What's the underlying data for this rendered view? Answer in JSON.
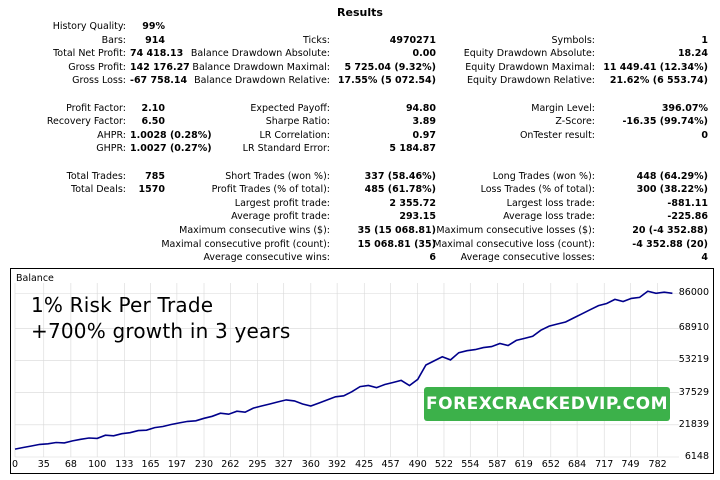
{
  "header": {
    "title": "Results"
  },
  "rows": [
    {
      "c1_label": "History Quality:",
      "c1_value": "99%",
      "c2_label": "",
      "c2_value": "",
      "c3_label": "",
      "c3_value": ""
    },
    {
      "c1_label": "Bars:",
      "c1_value": "914",
      "c2_label": "Ticks:",
      "c2_value": "4970271",
      "c3_label": "Symbols:",
      "c3_value": "1"
    },
    {
      "c1_label": "Total Net Profit:",
      "c1_value": "74 418.13",
      "c2_label": "Balance Drawdown Absolute:",
      "c2_value": "0.00",
      "c3_label": "Equity Drawdown Absolute:",
      "c3_value": "18.24"
    },
    {
      "c1_label": "Gross Profit:",
      "c1_value": "142 176.27",
      "c2_label": "Balance Drawdown Maximal:",
      "c2_value": "5 725.04 (9.32%)",
      "c3_label": "Equity Drawdown Maximal:",
      "c3_value": "11 449.41 (12.34%)"
    },
    {
      "c1_label": "Gross Loss:",
      "c1_value": "-67 758.14",
      "c2_label": "Balance Drawdown Relative:",
      "c2_value": "17.55% (5 072.54)",
      "c3_label": "Equity Drawdown Relative:",
      "c3_value": "21.62% (6 553.74)"
    },
    {
      "c1_label": "",
      "c1_value": "",
      "c2_label": "",
      "c2_value": "",
      "c3_label": "",
      "c3_value": ""
    },
    {
      "c1_label": "Profit Factor:",
      "c1_value": "2.10",
      "c2_label": "Expected Payoff:",
      "c2_value": "94.80",
      "c3_label": "Margin Level:",
      "c3_value": "396.07%"
    },
    {
      "c1_label": "Recovery Factor:",
      "c1_value": "6.50",
      "c2_label": "Sharpe Ratio:",
      "c2_value": "3.89",
      "c3_label": "Z-Score:",
      "c3_value": "-16.35 (99.74%)"
    },
    {
      "c1_label": "AHPR:",
      "c1_value": "1.0028 (0.28%)",
      "c2_label": "LR Correlation:",
      "c2_value": "0.97",
      "c3_label": "OnTester result:",
      "c3_value": "0"
    },
    {
      "c1_label": "GHPR:",
      "c1_value": "1.0027 (0.27%)",
      "c2_label": "LR Standard Error:",
      "c2_value": "5 184.87",
      "c3_label": "",
      "c3_value": ""
    },
    {
      "c1_label": "",
      "c1_value": "",
      "c2_label": "",
      "c2_value": "",
      "c3_label": "",
      "c3_value": ""
    },
    {
      "c1_label": "Total Trades:",
      "c1_value": "785",
      "c2_label": "Short Trades (won %):",
      "c2_value": "337 (58.46%)",
      "c3_label": "Long Trades (won %):",
      "c3_value": "448 (64.29%)"
    },
    {
      "c1_label": "Total Deals:",
      "c1_value": "1570",
      "c2_label": "Profit Trades (% of total):",
      "c2_value": "485 (61.78%)",
      "c3_label": "Loss Trades (% of total):",
      "c3_value": "300 (38.22%)"
    },
    {
      "c1_label": "",
      "c1_value": "",
      "c2_label": "Largest profit trade:",
      "c2_value": "2 355.72",
      "c3_label": "Largest loss trade:",
      "c3_value": "-881.11"
    },
    {
      "c1_label": "",
      "c1_value": "",
      "c2_label": "Average profit trade:",
      "c2_value": "293.15",
      "c3_label": "Average loss trade:",
      "c3_value": "-225.86"
    },
    {
      "c1_label": "",
      "c1_value": "",
      "c2_label": "Maximum consecutive wins ($):",
      "c2_value": "35 (15 068.81)",
      "c3_label": "Maximum consecutive losses ($):",
      "c3_value": "20 (-4 352.88)"
    },
    {
      "c1_label": "",
      "c1_value": "",
      "c2_label": "Maximal consecutive profit (count):",
      "c2_value": "15 068.81 (35)",
      "c3_label": "Maximal consecutive loss (count):",
      "c3_value": "-4 352.88 (20)"
    },
    {
      "c1_label": "",
      "c1_value": "",
      "c2_label": "Average consecutive wins:",
      "c2_value": "6",
      "c3_label": "Average consecutive losses:",
      "c3_value": "4"
    }
  ],
  "chart": {
    "label": "Balance",
    "overlay_line1": "1% Risk Per Trade",
    "overlay_line2": "+700% growth in 3 years",
    "banner": "FOREXCRACKEDVIP.COM",
    "line_color": "#00008b",
    "banner_color": "#3cb14a"
  },
  "chart_data": {
    "type": "line",
    "title": "Balance",
    "x_ticks": [
      "0",
      "35",
      "68",
      "100",
      "133",
      "165",
      "197",
      "230",
      "262",
      "295",
      "327",
      "360",
      "392",
      "425",
      "457",
      "490",
      "522",
      "554",
      "587",
      "619",
      "652",
      "684",
      "717",
      "749",
      "782"
    ],
    "y_ticks": [
      "86000",
      "68910",
      "53219",
      "37529",
      "21839",
      "6148"
    ],
    "xlim": [
      0,
      808
    ],
    "ylim": [
      6148,
      91000
    ],
    "series": [
      {
        "x": [
          0,
          10,
          20,
          30,
          40,
          50,
          60,
          70,
          80,
          90,
          100,
          110,
          120,
          130,
          140,
          150,
          160,
          170,
          180,
          190,
          200,
          210,
          220,
          230,
          240,
          250,
          260,
          270,
          280,
          290,
          300,
          310,
          320,
          330,
          340,
          350,
          360,
          370,
          380,
          390,
          400,
          410,
          420,
          430,
          440,
          450,
          460,
          470,
          480,
          490,
          500,
          510,
          520,
          530,
          540,
          550,
          560,
          570,
          580,
          590,
          600,
          610,
          620,
          630,
          640,
          650,
          660,
          670,
          680,
          690,
          700,
          710,
          720,
          730,
          740,
          750,
          760,
          770,
          780,
          790,
          800
        ],
        "y": [
          10000,
          10800,
          11500,
          12300,
          12600,
          13200,
          13000,
          14000,
          14800,
          15400,
          15200,
          16800,
          16500,
          17500,
          18000,
          19000,
          19200,
          20500,
          21000,
          22000,
          22800,
          23500,
          23800,
          25000,
          26000,
          27500,
          27000,
          28500,
          28000,
          30000,
          31000,
          32000,
          33000,
          34000,
          33500,
          32000,
          31000,
          32500,
          34000,
          35500,
          36000,
          38000,
          40500,
          41000,
          40000,
          41500,
          42500,
          43500,
          41000,
          44000,
          51000,
          53000,
          55000,
          53500,
          57000,
          58000,
          58500,
          59500,
          60000,
          61500,
          60500,
          63000,
          64000,
          65000,
          68000,
          70000,
          71000,
          72000,
          74000,
          76000,
          78000,
          80000,
          81000,
          83000,
          82000,
          83500,
          84000,
          87000,
          86000,
          86500,
          86000
        ]
      }
    ]
  }
}
